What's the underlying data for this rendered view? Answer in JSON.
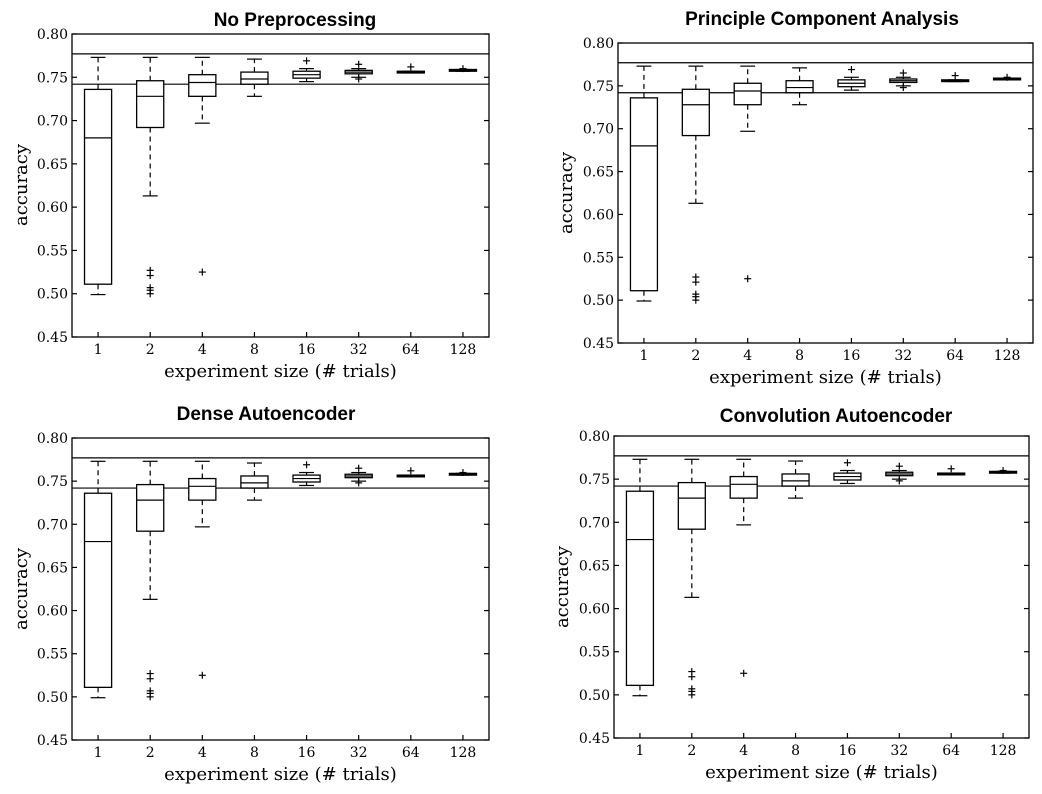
{
  "chart_data": [
    {
      "type": "box",
      "title": "No Preprocessing",
      "xlabel": "experiment size (# trials)",
      "ylabel": "accuracy",
      "categories": [
        "1",
        "2",
        "4",
        "8",
        "16",
        "32",
        "64",
        "128"
      ],
      "ylim": [
        0.45,
        0.8
      ],
      "yticks": [
        "0.45",
        "0.50",
        "0.55",
        "0.60",
        "0.65",
        "0.70",
        "0.75",
        "0.80"
      ],
      "hlines": [
        0.777,
        0.742
      ],
      "boxes": [
        {
          "whisker_low": 0.499,
          "q1": 0.511,
          "median": 0.68,
          "q3": 0.736,
          "whisker_high": 0.773,
          "outliers": []
        },
        {
          "whisker_low": 0.613,
          "q1": 0.692,
          "median": 0.728,
          "q3": 0.746,
          "whisker_high": 0.773,
          "outliers": [
            0.527,
            0.521,
            0.507,
            0.504,
            0.5
          ]
        },
        {
          "whisker_low": 0.697,
          "q1": 0.728,
          "median": 0.744,
          "q3": 0.753,
          "whisker_high": 0.773,
          "outliers": [
            0.525
          ]
        },
        {
          "whisker_low": 0.728,
          "q1": 0.742,
          "median": 0.748,
          "q3": 0.756,
          "whisker_high": 0.771,
          "outliers": []
        },
        {
          "whisker_low": 0.745,
          "q1": 0.749,
          "median": 0.753,
          "q3": 0.757,
          "whisker_high": 0.76,
          "outliers": [
            0.769
          ]
        },
        {
          "whisker_low": 0.75,
          "q1": 0.754,
          "median": 0.756,
          "q3": 0.758,
          "whisker_high": 0.76,
          "outliers": [
            0.765,
            0.748
          ]
        },
        {
          "whisker_low": 0.755,
          "q1": 0.755,
          "median": 0.756,
          "q3": 0.757,
          "whisker_high": 0.757,
          "outliers": [
            0.762
          ]
        },
        {
          "whisker_low": 0.757,
          "q1": 0.757,
          "median": 0.758,
          "q3": 0.759,
          "whisker_high": 0.759,
          "outliers": [
            0.76
          ]
        }
      ]
    },
    {
      "type": "box",
      "title": "Principle Component Analysis",
      "xlabel": "experiment size (# trials)",
      "ylabel": "accuracy",
      "categories": [
        "1",
        "2",
        "4",
        "8",
        "16",
        "32",
        "64",
        "128"
      ],
      "ylim": [
        0.45,
        0.8
      ],
      "yticks": [
        "0.45",
        "0.50",
        "0.55",
        "0.60",
        "0.65",
        "0.70",
        "0.75",
        "0.80"
      ],
      "hlines": [
        0.777,
        0.742
      ],
      "boxes": [
        {
          "whisker_low": 0.499,
          "q1": 0.511,
          "median": 0.68,
          "q3": 0.736,
          "whisker_high": 0.773,
          "outliers": []
        },
        {
          "whisker_low": 0.613,
          "q1": 0.692,
          "median": 0.728,
          "q3": 0.746,
          "whisker_high": 0.773,
          "outliers": [
            0.527,
            0.521,
            0.507,
            0.504,
            0.5
          ]
        },
        {
          "whisker_low": 0.697,
          "q1": 0.728,
          "median": 0.744,
          "q3": 0.753,
          "whisker_high": 0.773,
          "outliers": [
            0.525
          ]
        },
        {
          "whisker_low": 0.728,
          "q1": 0.742,
          "median": 0.748,
          "q3": 0.756,
          "whisker_high": 0.771,
          "outliers": []
        },
        {
          "whisker_low": 0.745,
          "q1": 0.749,
          "median": 0.753,
          "q3": 0.757,
          "whisker_high": 0.76,
          "outliers": [
            0.769
          ]
        },
        {
          "whisker_low": 0.75,
          "q1": 0.754,
          "median": 0.756,
          "q3": 0.758,
          "whisker_high": 0.76,
          "outliers": [
            0.765,
            0.748
          ]
        },
        {
          "whisker_low": 0.755,
          "q1": 0.755,
          "median": 0.756,
          "q3": 0.757,
          "whisker_high": 0.757,
          "outliers": [
            0.762
          ]
        },
        {
          "whisker_low": 0.757,
          "q1": 0.757,
          "median": 0.758,
          "q3": 0.759,
          "whisker_high": 0.759,
          "outliers": [
            0.76
          ]
        }
      ]
    },
    {
      "type": "box",
      "title": "Dense Autoencoder",
      "xlabel": "experiment size (# trials)",
      "ylabel": "accuracy",
      "categories": [
        "1",
        "2",
        "4",
        "8",
        "16",
        "32",
        "64",
        "128"
      ],
      "ylim": [
        0.45,
        0.8
      ],
      "yticks": [
        "0.45",
        "0.50",
        "0.55",
        "0.60",
        "0.65",
        "0.70",
        "0.75",
        "0.80"
      ],
      "hlines": [
        0.777,
        0.742
      ],
      "boxes": [
        {
          "whisker_low": 0.499,
          "q1": 0.511,
          "median": 0.68,
          "q3": 0.736,
          "whisker_high": 0.773,
          "outliers": []
        },
        {
          "whisker_low": 0.613,
          "q1": 0.692,
          "median": 0.728,
          "q3": 0.746,
          "whisker_high": 0.773,
          "outliers": [
            0.527,
            0.521,
            0.507,
            0.504,
            0.5
          ]
        },
        {
          "whisker_low": 0.697,
          "q1": 0.728,
          "median": 0.744,
          "q3": 0.753,
          "whisker_high": 0.773,
          "outliers": [
            0.525
          ]
        },
        {
          "whisker_low": 0.728,
          "q1": 0.742,
          "median": 0.748,
          "q3": 0.756,
          "whisker_high": 0.771,
          "outliers": []
        },
        {
          "whisker_low": 0.745,
          "q1": 0.749,
          "median": 0.753,
          "q3": 0.757,
          "whisker_high": 0.76,
          "outliers": [
            0.769
          ]
        },
        {
          "whisker_low": 0.75,
          "q1": 0.754,
          "median": 0.756,
          "q3": 0.758,
          "whisker_high": 0.76,
          "outliers": [
            0.765,
            0.748
          ]
        },
        {
          "whisker_low": 0.755,
          "q1": 0.755,
          "median": 0.756,
          "q3": 0.757,
          "whisker_high": 0.757,
          "outliers": [
            0.762
          ]
        },
        {
          "whisker_low": 0.757,
          "q1": 0.757,
          "median": 0.758,
          "q3": 0.759,
          "whisker_high": 0.759,
          "outliers": [
            0.76
          ]
        }
      ]
    },
    {
      "type": "box",
      "title": "Convolution Autoencoder",
      "xlabel": "experiment size (# trials)",
      "ylabel": "accuracy",
      "categories": [
        "1",
        "2",
        "4",
        "8",
        "16",
        "32",
        "64",
        "128"
      ],
      "ylim": [
        0.45,
        0.8
      ],
      "yticks": [
        "0.45",
        "0.50",
        "0.55",
        "0.60",
        "0.65",
        "0.70",
        "0.75",
        "0.80"
      ],
      "hlines": [
        0.777,
        0.742
      ],
      "boxes": [
        {
          "whisker_low": 0.499,
          "q1": 0.511,
          "median": 0.68,
          "q3": 0.736,
          "whisker_high": 0.773,
          "outliers": []
        },
        {
          "whisker_low": 0.613,
          "q1": 0.692,
          "median": 0.728,
          "q3": 0.746,
          "whisker_high": 0.773,
          "outliers": [
            0.527,
            0.521,
            0.507,
            0.504,
            0.5
          ]
        },
        {
          "whisker_low": 0.697,
          "q1": 0.728,
          "median": 0.744,
          "q3": 0.753,
          "whisker_high": 0.773,
          "outliers": [
            0.525
          ]
        },
        {
          "whisker_low": 0.728,
          "q1": 0.742,
          "median": 0.748,
          "q3": 0.756,
          "whisker_high": 0.771,
          "outliers": []
        },
        {
          "whisker_low": 0.745,
          "q1": 0.749,
          "median": 0.753,
          "q3": 0.757,
          "whisker_high": 0.76,
          "outliers": [
            0.769
          ]
        },
        {
          "whisker_low": 0.75,
          "q1": 0.754,
          "median": 0.756,
          "q3": 0.758,
          "whisker_high": 0.76,
          "outliers": [
            0.765,
            0.748
          ]
        },
        {
          "whisker_low": 0.755,
          "q1": 0.755,
          "median": 0.756,
          "q3": 0.757,
          "whisker_high": 0.757,
          "outliers": [
            0.762
          ]
        },
        {
          "whisker_low": 0.757,
          "q1": 0.757,
          "median": 0.758,
          "q3": 0.759,
          "whisker_high": 0.759,
          "outliers": [
            0.76
          ]
        }
      ]
    }
  ]
}
